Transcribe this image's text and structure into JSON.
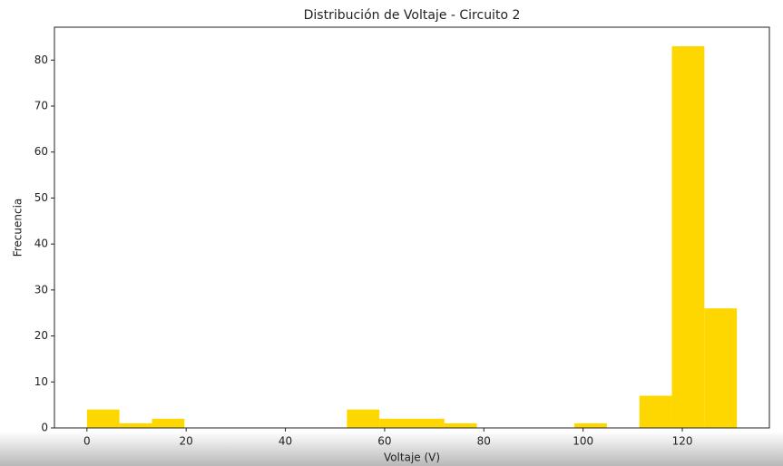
{
  "chart_data": {
    "type": "histogram",
    "title": "Distribución de Voltaje - Circuito 2",
    "xlabel": "Voltaje (V)",
    "ylabel": "Frecuencia",
    "bins": [
      0,
      6.55,
      13.1,
      19.65,
      26.2,
      32.75,
      39.3,
      45.85,
      52.4,
      58.95,
      65.5,
      72.05,
      78.6,
      85.15,
      91.7,
      98.25,
      104.8,
      111.35,
      117.9,
      124.45,
      131
    ],
    "counts": [
      4,
      1,
      2,
      0,
      0,
      0,
      0,
      0,
      4,
      2,
      2,
      1,
      0,
      0,
      0,
      1,
      0,
      7,
      83,
      26
    ],
    "color": "#ffd700",
    "xlim": [
      -6.55,
      137.55
    ],
    "xticks": [
      0,
      20,
      40,
      60,
      80,
      100,
      120
    ],
    "ylim": [
      0,
      87.15
    ],
    "yticks": [
      0,
      10,
      20,
      30,
      40,
      50,
      60,
      70,
      80
    ]
  }
}
